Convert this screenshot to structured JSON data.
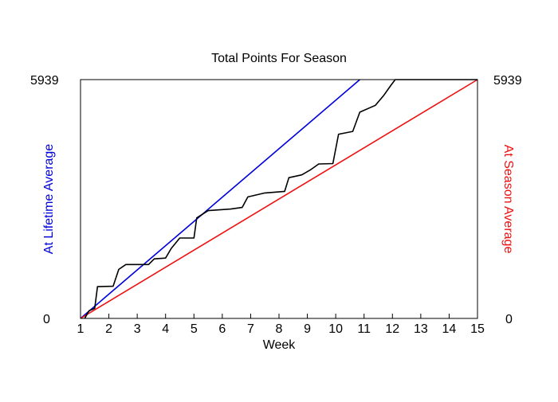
{
  "chart_data": {
    "type": "line",
    "title": "Total Points For Season",
    "xlabel": "Week",
    "ylabel_left": "At Lifetime Average",
    "ylabel_right": "At Season Average",
    "xlim": [
      1,
      15
    ],
    "ylim": [
      0,
      5939
    ],
    "x_ticks": [
      1,
      2,
      3,
      4,
      5,
      6,
      7,
      8,
      9,
      10,
      11,
      12,
      13,
      14,
      15
    ],
    "y_tick_labels_left": [
      "0",
      "5939"
    ],
    "y_tick_labels_right": [
      "0",
      "5939"
    ],
    "grid": false,
    "colors": {
      "lifetime": "#0000dd",
      "season": "#ee1111",
      "actual": "#000000"
    },
    "series": [
      {
        "key": "lifetime",
        "points": [
          [
            1,
            0
          ],
          [
            10.85,
            5939
          ]
        ]
      },
      {
        "key": "season",
        "points": [
          [
            1,
            0
          ],
          [
            15,
            5939
          ]
        ]
      },
      {
        "key": "actual",
        "points": [
          [
            1.15,
            0
          ],
          [
            1.3,
            190
          ],
          [
            1.5,
            250
          ],
          [
            1.6,
            790
          ],
          [
            2.15,
            800
          ],
          [
            2.35,
            1220
          ],
          [
            2.6,
            1340
          ],
          [
            3.4,
            1340
          ],
          [
            3.6,
            1480
          ],
          [
            4.0,
            1500
          ],
          [
            4.2,
            1740
          ],
          [
            4.5,
            2000
          ],
          [
            5.0,
            2000
          ],
          [
            5.1,
            2500
          ],
          [
            5.5,
            2680
          ],
          [
            6.3,
            2720
          ],
          [
            6.7,
            2760
          ],
          [
            6.9,
            3020
          ],
          [
            7.5,
            3120
          ],
          [
            8.2,
            3160
          ],
          [
            8.35,
            3500
          ],
          [
            8.8,
            3570
          ],
          [
            9.1,
            3690
          ],
          [
            9.4,
            3840
          ],
          [
            9.9,
            3850
          ],
          [
            10.1,
            4580
          ],
          [
            10.6,
            4650
          ],
          [
            10.85,
            5130
          ],
          [
            11.4,
            5300
          ],
          [
            11.7,
            5550
          ],
          [
            11.95,
            5800
          ],
          [
            12.1,
            5939
          ],
          [
            15,
            5939
          ]
        ]
      }
    ]
  }
}
